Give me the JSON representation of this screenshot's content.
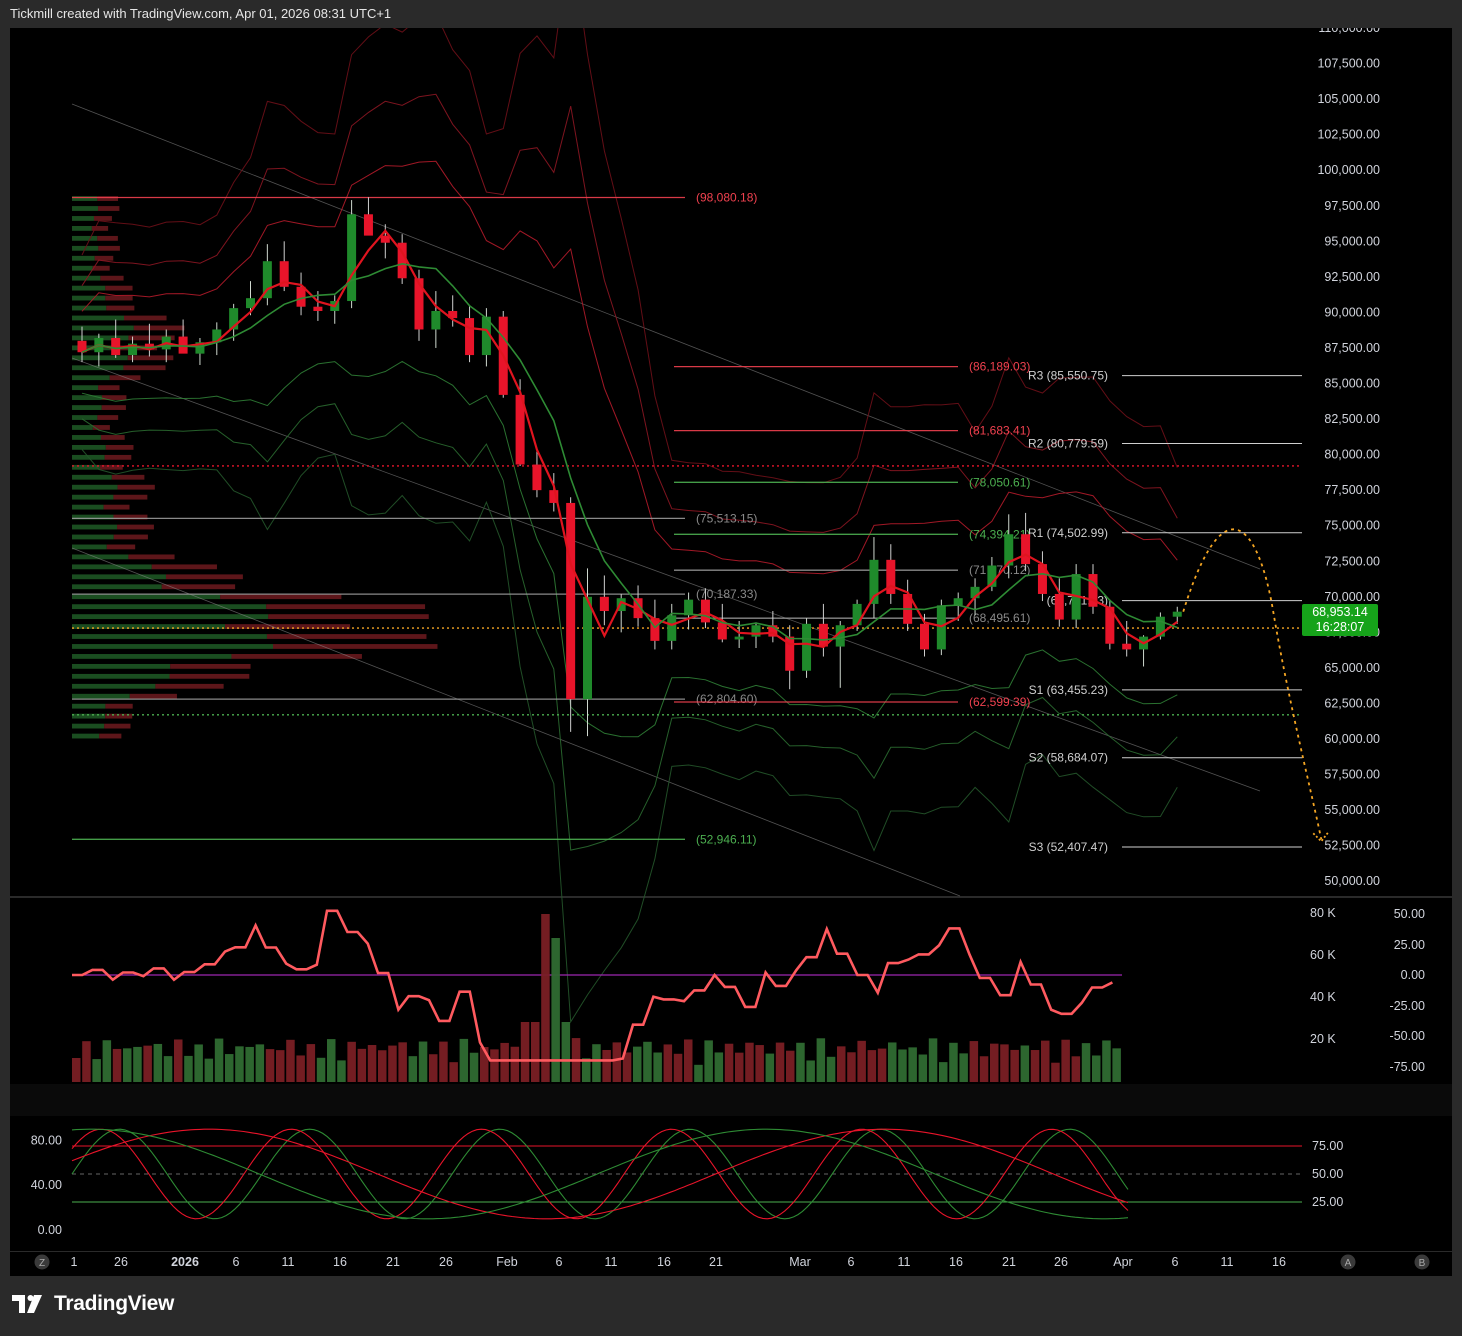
{
  "header": {
    "text": "Tickmill created with TradingView.com, Apr 01, 2026 08:31 UTC+1"
  },
  "brand": {
    "logo_text": "TradingView"
  },
  "price_tag": {
    "price": "68,953.14",
    "countdown": "16:28:07"
  },
  "colors": {
    "bull": "#1f8a2b",
    "bear": "#e8142a",
    "background": "#000000",
    "frame": "#2a2a2a"
  },
  "chart_data": [
    {
      "type": "candlestick",
      "title": "",
      "y_ticks": [
        "110,000.00",
        "107,500.00",
        "105,000.00",
        "102,500.00",
        "100,000.00",
        "97,500.00",
        "95,000.00",
        "92,500.00",
        "90,000.00",
        "87,500.00",
        "85,000.00",
        "82,500.00",
        "80,000.00",
        "77,500.00",
        "75,000.00",
        "72,500.00",
        "70,000.00",
        "67,500.00",
        "65,000.00",
        "62,500.00",
        "60,000.00",
        "57,500.00",
        "55,000.00",
        "52,500.00",
        "50,000.00"
      ],
      "ylim": [
        49500,
        110000
      ],
      "x_ticks": [
        "1",
        "26",
        "2026",
        "6",
        "11",
        "16",
        "21",
        "26",
        "Feb",
        "6",
        "11",
        "16",
        "21",
        "Mar",
        "6",
        "11",
        "16",
        "21",
        "26",
        "Apr",
        "6",
        "11",
        "16"
      ],
      "last_price": 68953.14,
      "horizontal_levels": [
        {
          "label": "(98,080.18)",
          "value": 98080.18,
          "color": "#f0414f"
        },
        {
          "label": "(86,189.03)",
          "value": 86189.03,
          "color": "#f0414f"
        },
        {
          "label": "(81,683.41)",
          "value": 81683.41,
          "color": "#f0414f"
        },
        {
          "label": "(78,050.61)",
          "value": 78050.61,
          "color": "#4caf50"
        },
        {
          "label": "(75,513.15)",
          "value": 75513.15,
          "color": "#8a8a8a"
        },
        {
          "label": "(74,394.21)",
          "value": 74394.21,
          "color": "#4caf50"
        },
        {
          "label": "(71,870.12)",
          "value": 71870.12,
          "color": "#8a8a8a"
        },
        {
          "label": "(70,187.33)",
          "value": 70187.33,
          "color": "#8a8a8a"
        },
        {
          "label": "(68,495.61)",
          "value": 68495.61,
          "color": "#8a8a8a"
        },
        {
          "label": "(62,804.60)",
          "value": 62804.6,
          "color": "#8a8a8a"
        },
        {
          "label": "(62,599.39)",
          "value": 62599.39,
          "color": "#f0414f"
        },
        {
          "label": "(52,946.11)",
          "value": 52946.11,
          "color": "#4caf50"
        }
      ],
      "pivots": [
        {
          "label": "R3 (85,550.75)",
          "value": 85550.75
        },
        {
          "label": "R2 (80,779.59)",
          "value": 80779.59
        },
        {
          "label": "R1 (74,502.99)",
          "value": 74502.99
        },
        {
          "label": "(69,731.83)",
          "value": 69731.83
        },
        {
          "label": "S1 (63,455.23)",
          "value": 63455.23
        },
        {
          "label": "S2 (58,684.07)",
          "value": 58684.07
        },
        {
          "label": "S3 (52,407.47)",
          "value": 52407.47
        }
      ],
      "dotted_levels": [
        79200,
        67800,
        61700
      ],
      "candles": [
        [
          88000,
          89000,
          86500,
          87200
        ],
        [
          87200,
          88500,
          86200,
          88200
        ],
        [
          88200,
          89500,
          86800,
          87000
        ],
        [
          87000,
          88300,
          86500,
          87800
        ],
        [
          87800,
          89200,
          86900,
          87400
        ],
        [
          87400,
          88800,
          86500,
          88300
        ],
        [
          88300,
          89500,
          87200,
          87100
        ],
        [
          87100,
          88200,
          86300,
          87900
        ],
        [
          87900,
          89300,
          87000,
          88800
        ],
        [
          88800,
          90600,
          88000,
          90300
        ],
        [
          90300,
          92200,
          89800,
          91000
        ],
        [
          91000,
          94800,
          90500,
          93600
        ],
        [
          93600,
          95000,
          91500,
          91800
        ],
        [
          91800,
          92800,
          89800,
          90400
        ],
        [
          90400,
          91500,
          89400,
          90100
        ],
        [
          90100,
          91200,
          89200,
          90800
        ],
        [
          90800,
          97900,
          90300,
          96900
        ],
        [
          96900,
          98100,
          95500,
          95400
        ],
        [
          95400,
          96200,
          93800,
          94900
        ],
        [
          94900,
          95500,
          92000,
          92400
        ],
        [
          92400,
          93000,
          88000,
          88800
        ],
        [
          88800,
          91500,
          87500,
          90100
        ],
        [
          90100,
          91200,
          89000,
          89600
        ],
        [
          89600,
          90500,
          86500,
          87000
        ],
        [
          87000,
          90300,
          86200,
          89700
        ],
        [
          89700,
          90100,
          84000,
          84200
        ],
        [
          84200,
          85300,
          79200,
          79300
        ],
        [
          79300,
          80500,
          77000,
          77500
        ],
        [
          77500,
          78700,
          76000,
          76600
        ],
        [
          76600,
          77000,
          60500,
          62800
        ],
        [
          62800,
          72000,
          60200,
          70000
        ],
        [
          70000,
          71500,
          68000,
          69000
        ],
        [
          69000,
          70200,
          67500,
          69900
        ],
        [
          69900,
          70800,
          67900,
          68500
        ],
        [
          68500,
          69800,
          66300,
          66900
        ],
        [
          66900,
          69500,
          66300,
          68700
        ],
        [
          68700,
          70300,
          67700,
          69800
        ],
        [
          69800,
          70600,
          67800,
          68200
        ],
        [
          68200,
          69500,
          66800,
          67000
        ],
        [
          67000,
          68300,
          66400,
          67200
        ],
        [
          67200,
          68200,
          66400,
          68000
        ],
        [
          68000,
          69000,
          66800,
          67200
        ],
        [
          67200,
          68000,
          63500,
          64800
        ],
        [
          64800,
          68500,
          64300,
          68100
        ],
        [
          68100,
          69500,
          65800,
          66500
        ],
        [
          66500,
          68300,
          63600,
          68000
        ],
        [
          68000,
          69800,
          67600,
          69500
        ],
        [
          69500,
          74200,
          68500,
          72600
        ],
        [
          72600,
          73700,
          69500,
          70200
        ],
        [
          70200,
          71200,
          67600,
          68100
        ],
        [
          68100,
          68800,
          65800,
          66300
        ],
        [
          66300,
          69800,
          65900,
          69400
        ],
        [
          69400,
          70300,
          68300,
          69900
        ],
        [
          69900,
          71300,
          68700,
          70700
        ],
        [
          70700,
          72800,
          70400,
          72200
        ],
        [
          72200,
          75800,
          71300,
          74400
        ],
        [
          74400,
          75900,
          71800,
          72300
        ],
        [
          72300,
          73200,
          69700,
          70200
        ],
        [
          70200,
          71300,
          67900,
          68400
        ],
        [
          68400,
          72300,
          67800,
          71600
        ],
        [
          71600,
          72300,
          68800,
          69300
        ],
        [
          69300,
          69800,
          66300,
          66700
        ],
        [
          66700,
          68300,
          65800,
          66300
        ],
        [
          66300,
          67300,
          65100,
          67200
        ],
        [
          67200,
          68900,
          67000,
          68600
        ],
        [
          68600,
          69300,
          68100,
          68953
        ]
      ],
      "projection": {
        "style": "dotted-arc",
        "color": "#f5a623",
        "from": 68953,
        "peak": 73800,
        "target": 52946
      }
    },
    {
      "type": "bar+line",
      "title": "",
      "left_ticks": [
        "80 K",
        "60 K",
        "40 K",
        "20 K"
      ],
      "right_ticks": [
        "50.00",
        "25.00",
        "0.00",
        "-25.00",
        "-50.00",
        "-75.00"
      ],
      "oscillator_zero_line_color": "#9c27b0"
    },
    {
      "type": "line",
      "title": "",
      "left_ticks": [
        "80.00",
        "40.00",
        "0.00"
      ],
      "right_ticks": [
        "75.00",
        "50.00",
        "25.00"
      ],
      "bands": [
        75,
        50,
        25
      ]
    }
  ],
  "scale_buttons": {
    "left": "Z",
    "right_a": "A",
    "right_b": "B"
  }
}
